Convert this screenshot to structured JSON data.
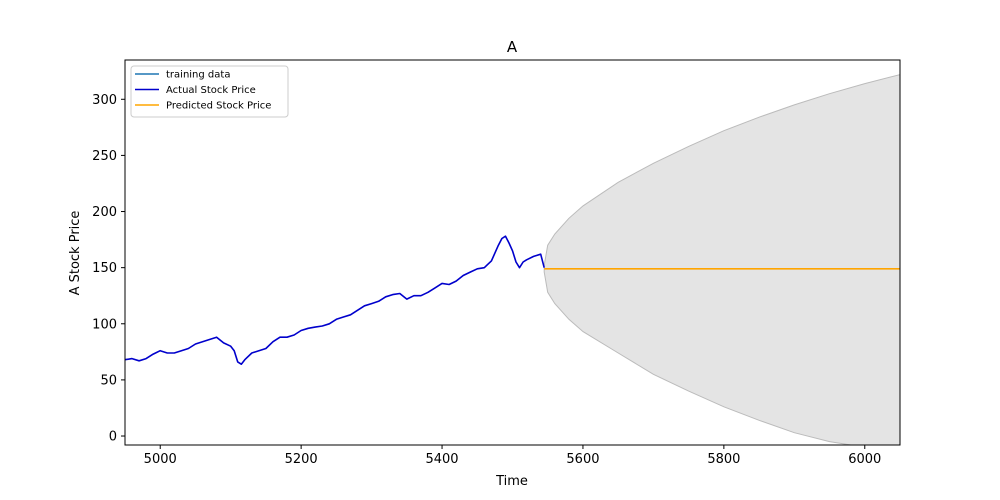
{
  "chart_data": {
    "type": "line",
    "title": "A",
    "xlabel": "Time",
    "ylabel": "A Stock Price",
    "xlim": [
      4950,
      6050
    ],
    "ylim": [
      -8,
      335
    ],
    "x_ticks": [
      5000,
      5200,
      5400,
      5600,
      5800,
      6000
    ],
    "y_ticks": [
      0,
      50,
      100,
      150,
      200,
      250,
      300
    ],
    "grid": false,
    "legend_position": "top-left",
    "legend": [
      {
        "label": "training data",
        "color": "#1f77b4"
      },
      {
        "label": "Actual Stock Price",
        "color": "#0000cc"
      },
      {
        "label": "Predicted Stock Price",
        "color": "#ffa500"
      }
    ],
    "series": [
      {
        "name": "Actual Stock Price",
        "color": "#0000cc",
        "x": [
          4950,
          4960,
          4970,
          4980,
          4990,
          5000,
          5010,
          5020,
          5030,
          5040,
          5050,
          5060,
          5070,
          5080,
          5090,
          5100,
          5105,
          5110,
          5115,
          5120,
          5130,
          5140,
          5150,
          5160,
          5170,
          5180,
          5190,
          5200,
          5210,
          5220,
          5230,
          5240,
          5250,
          5260,
          5270,
          5280,
          5290,
          5300,
          5310,
          5320,
          5330,
          5340,
          5350,
          5360,
          5370,
          5380,
          5390,
          5400,
          5410,
          5420,
          5430,
          5440,
          5450,
          5460,
          5465,
          5470,
          5475,
          5480,
          5485,
          5490,
          5495,
          5500,
          5505,
          5510,
          5515,
          5520,
          5530,
          5540,
          5545
        ],
        "y": [
          68,
          69,
          67,
          69,
          73,
          76,
          74,
          74,
          76,
          78,
          82,
          84,
          86,
          88,
          83,
          80,
          76,
          66,
          64,
          68,
          74,
          76,
          78,
          84,
          88,
          88,
          90,
          94,
          96,
          97,
          98,
          100,
          104,
          106,
          108,
          112,
          116,
          118,
          120,
          124,
          126,
          127,
          122,
          125,
          125,
          128,
          132,
          136,
          135,
          138,
          143,
          146,
          149,
          150,
          153,
          156,
          163,
          170,
          176,
          178,
          172,
          165,
          155,
          150,
          155,
          157,
          160,
          162,
          150
        ]
      },
      {
        "name": "Predicted Stock Price",
        "color": "#ffa500",
        "x": [
          5545,
          6050
        ],
        "y": [
          149,
          149
        ]
      }
    ],
    "confidence_band": {
      "color": "#d8d8d8",
      "x": [
        5545,
        5550,
        5560,
        5580,
        5600,
        5650,
        5700,
        5750,
        5800,
        5850,
        5900,
        5950,
        6000,
        6050
      ],
      "upper": [
        152,
        170,
        180,
        194,
        205,
        226,
        243,
        258,
        272,
        284,
        295,
        305,
        314,
        322
      ],
      "lower": [
        146,
        128,
        118,
        104,
        93,
        74,
        55,
        40,
        26,
        14,
        3,
        -5,
        -10,
        -15
      ]
    }
  }
}
